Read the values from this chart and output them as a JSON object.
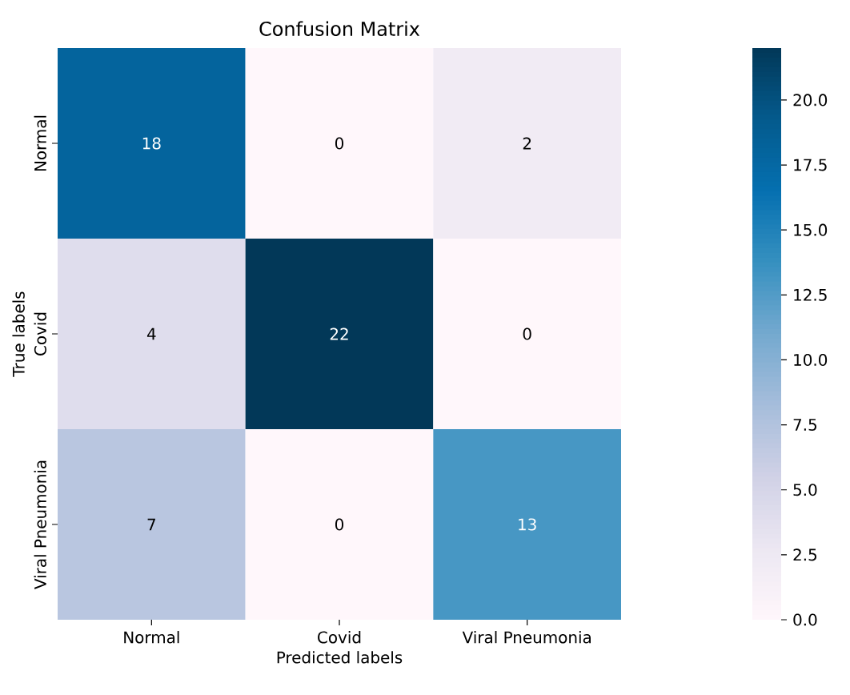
{
  "chart_data": {
    "type": "heatmap",
    "title": "Confusion Matrix",
    "xlabel": "Predicted labels",
    "ylabel": "True labels",
    "categories": [
      "Normal",
      "Covid",
      "Viral Pneumonia"
    ],
    "y_categories": [
      "Normal",
      "Covid",
      "Viral Pneumonia"
    ],
    "cells": [
      [
        18,
        0,
        2
      ],
      [
        4,
        22,
        0
      ],
      [
        7,
        0,
        13
      ]
    ],
    "data_labels": true,
    "clim": [
      0,
      22
    ],
    "cticks": [
      {
        "value": 0,
        "label": "0.0"
      },
      {
        "value": 2.5,
        "label": "2.5"
      },
      {
        "value": 5,
        "label": "5.0"
      },
      {
        "value": 7.5,
        "label": "7.5"
      },
      {
        "value": 10,
        "label": "10.0"
      },
      {
        "value": 12.5,
        "label": "12.5"
      },
      {
        "value": 15,
        "label": "15.0"
      },
      {
        "value": 17.5,
        "label": "17.5"
      },
      {
        "value": 20,
        "label": "20.0"
      }
    ]
  }
}
